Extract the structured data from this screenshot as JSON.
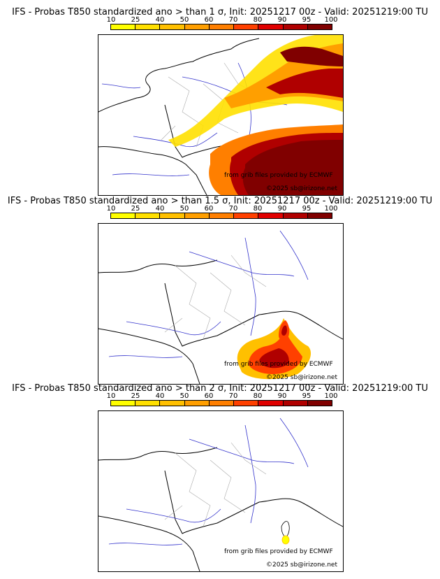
{
  "panels": [
    {
      "title": "IFS - Probas T850  standardized ano > than 1 σ, Init: 20251217 00z - Valid: 20251219:00 TU",
      "threshold": "1 σ"
    },
    {
      "title": "IFS - Probas T850  standardized ano > than 1.5 σ, Init: 20251217 00z - Valid: 20251219:00 TU",
      "threshold": "1.5 σ"
    },
    {
      "title": "IFS - Probas T850  standardized ano > than 2 σ, Init: 20251217 00z - Valid: 20251219:00 TU",
      "threshold": "2 σ"
    }
  ],
  "colorbar": {
    "ticks": [
      "10",
      "25",
      "40",
      "50",
      "60",
      "70",
      "80",
      "90",
      "95",
      "100"
    ],
    "colors": [
      "#ffff00",
      "#ffe000",
      "#ffc000",
      "#ff9f00",
      "#ff7f00",
      "#ff4000",
      "#e00000",
      "#b00000",
      "#800000"
    ]
  },
  "credits": {
    "source": "from grib files provided by ECMWF",
    "copyright": "©2025 sb@irizone.net"
  }
}
